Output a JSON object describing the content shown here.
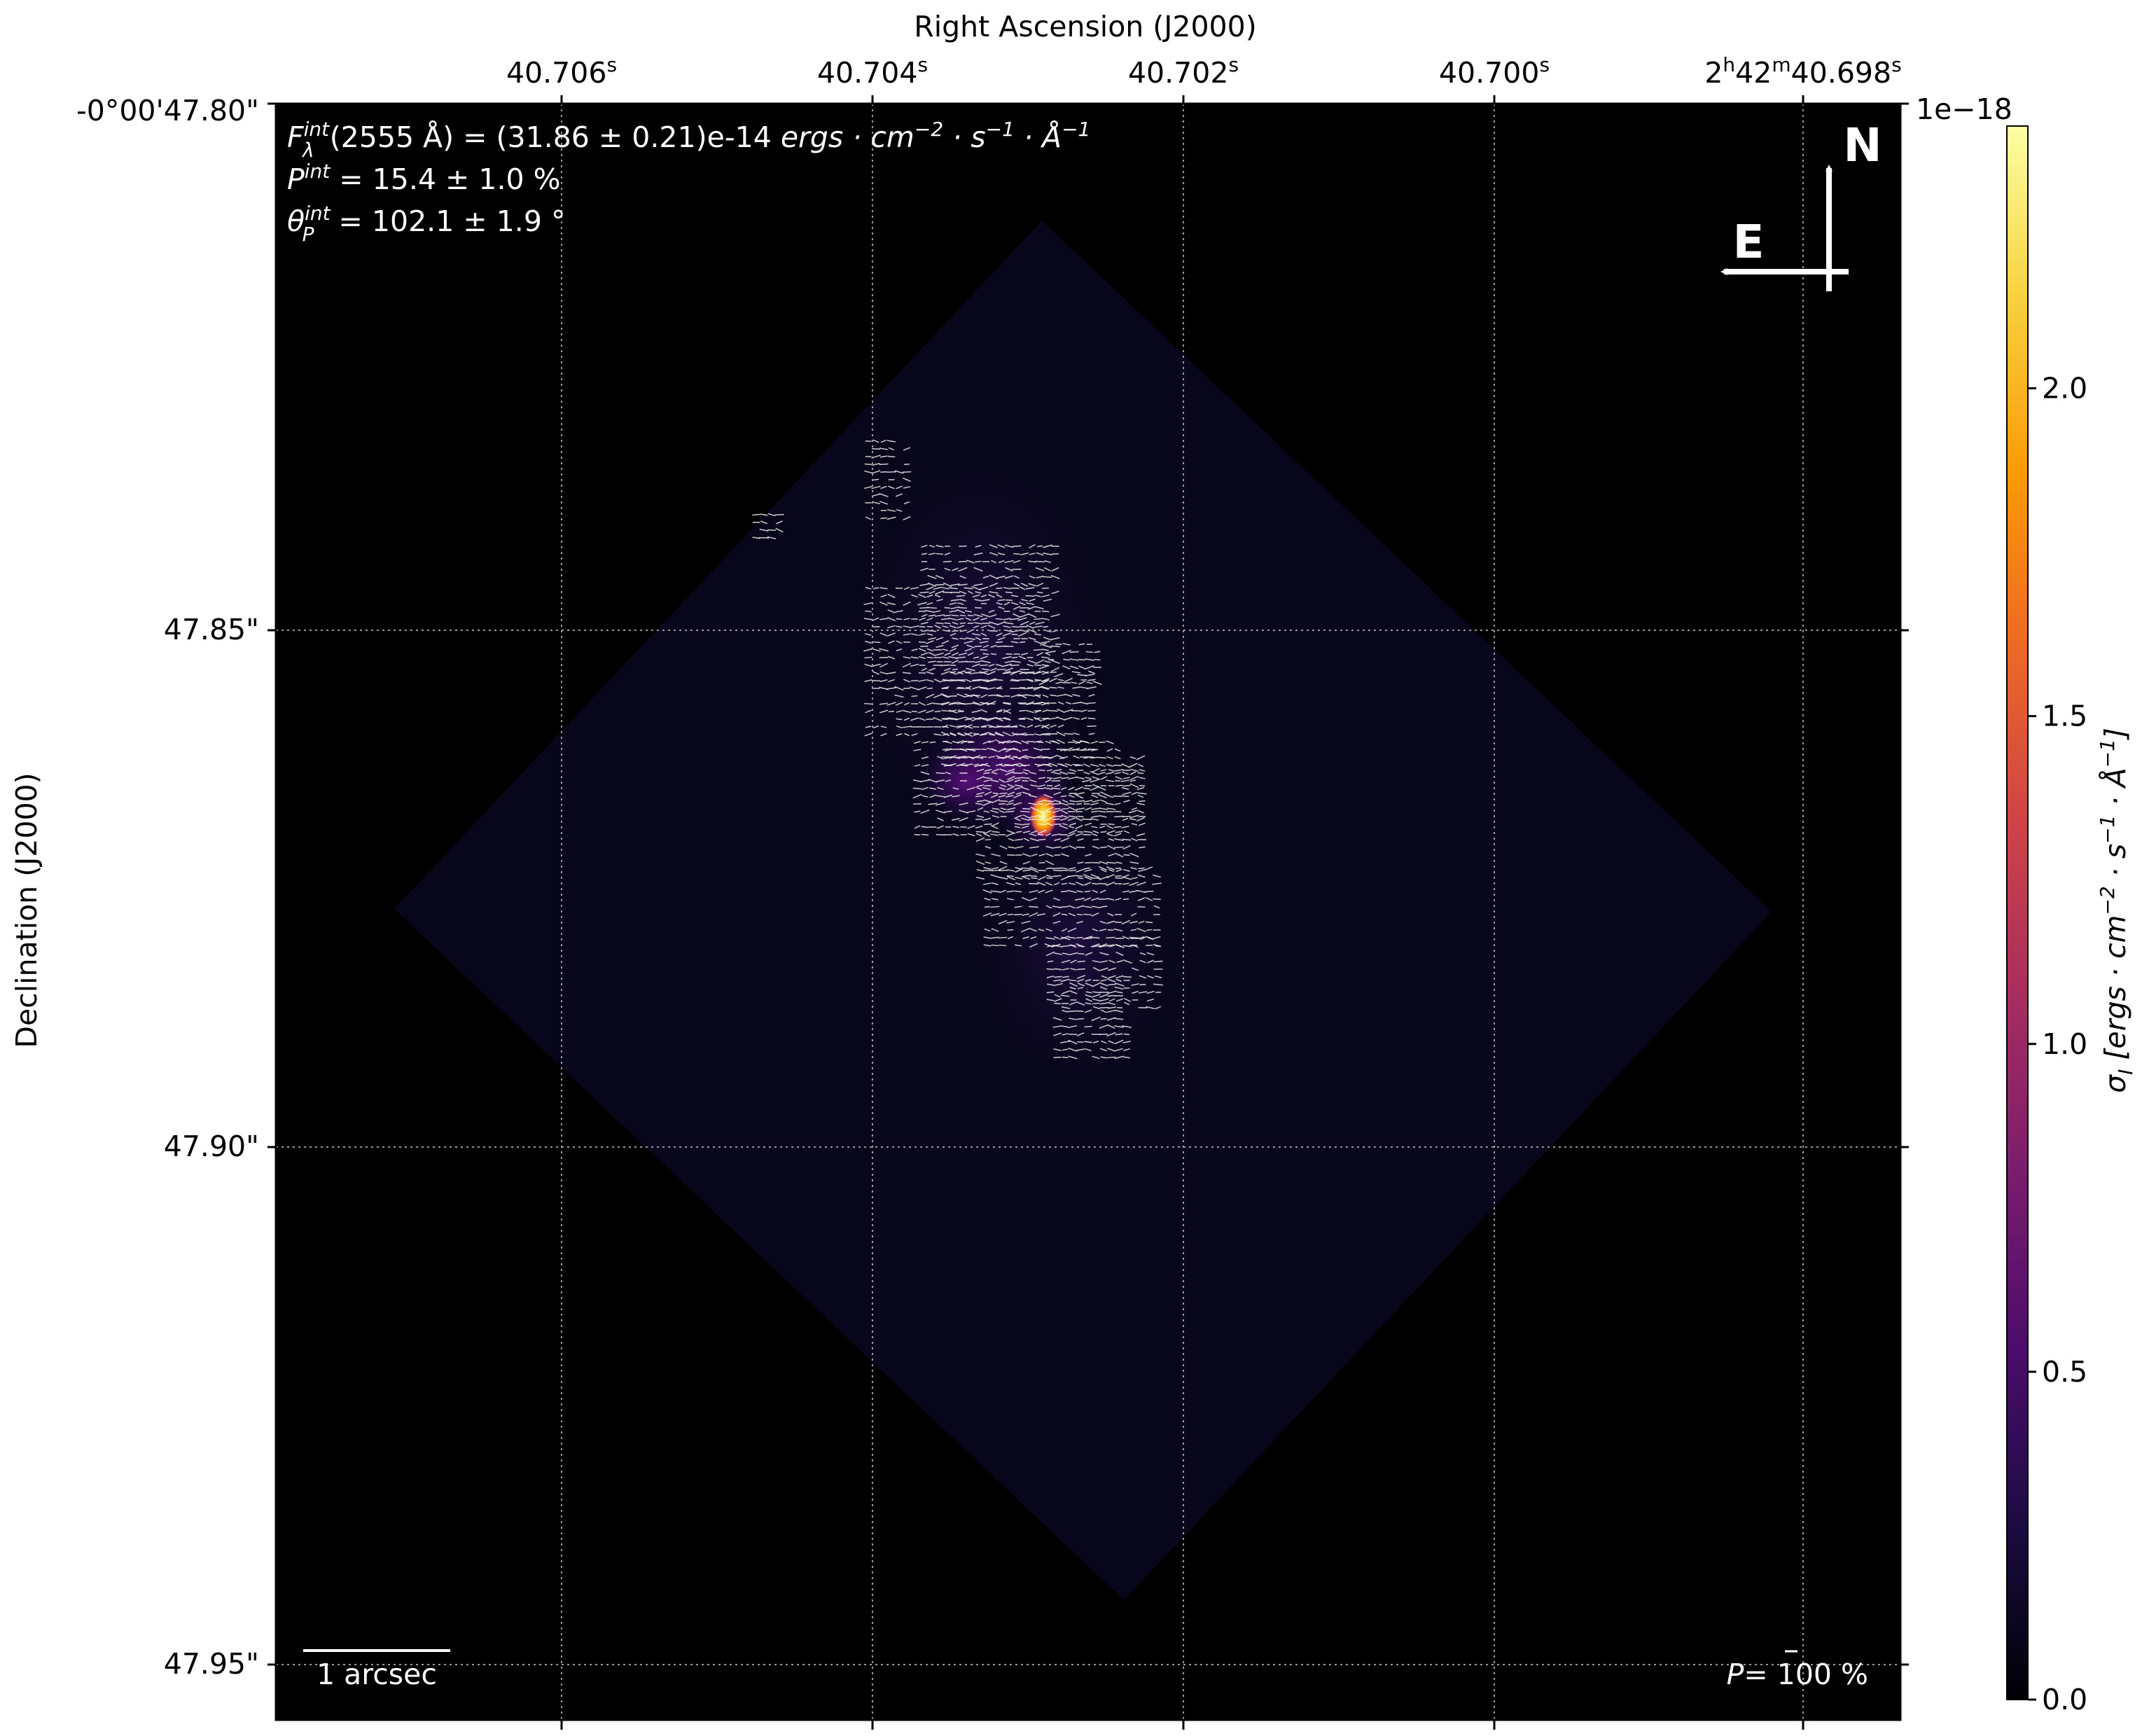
{
  "chart_data": {
    "type": "heatmap",
    "title": "",
    "xlabel": "Right Ascension (J2000)",
    "ylabel": "Declination (J2000)",
    "x_ticks": [
      {
        "label": "40.706",
        "sup": "s"
      },
      {
        "label": "40.704",
        "sup": "s"
      },
      {
        "label": "40.702",
        "sup": "s"
      },
      {
        "label": "40.700",
        "sup": "s"
      },
      {
        "label_parts": [
          "2",
          "h",
          "42",
          "m",
          "40.698",
          "s"
        ]
      }
    ],
    "y_ticks": [
      "-0°00'47.80\"",
      "47.85\"",
      "47.90\"",
      "47.95\""
    ],
    "grid": true,
    "colormap": "inferno",
    "colorbar": {
      "label": "σ_I [ergs·cm⁻²·s⁻¹·Å⁻¹]",
      "label_parts": [
        "σ",
        "I",
        " [ergs · cm",
        "−2",
        " · s",
        "−1",
        " · Å",
        "−1",
        "]"
      ],
      "exponent": "1e−18",
      "range": [
        0.0,
        2.4
      ],
      "ticks": [
        "0.0",
        "0.5",
        "1.0",
        "1.5",
        "2.0"
      ]
    },
    "annotations": {
      "flux": {
        "symbol": "F",
        "sup": "int",
        "sub": "λ",
        "text": "(2555 Å) = (31.86 ± 0.21)e-14 ",
        "units": "ergs · cm",
        "units_parts": [
          "−2",
          " · s",
          "−1",
          " · Å",
          "−1"
        ]
      },
      "polarization_degree": {
        "symbol": "P",
        "sup": "int",
        "text": " = 15.4 ± 1.0 %"
      },
      "polarization_angle": {
        "symbol": "θ",
        "sup": "int",
        "sub": "P",
        "text": " = 102.1 ± 1.9 °"
      },
      "scale_bar": "1 arcsec",
      "vector_scale": {
        "symbol": "P",
        "text": "= 100 %"
      },
      "compass": {
        "north": "N",
        "east": "E"
      }
    },
    "peak_value": 2.4
  },
  "colors": {
    "background": "#000000",
    "footprint": "#07061a",
    "grid": "#9a9a9a",
    "vectors": "#ffffff",
    "inferno": [
      "#000004",
      "#1b0c41",
      "#4a0c6b",
      "#781c6d",
      "#a52c60",
      "#cf4446",
      "#ed6925",
      "#fb9b06",
      "#f7d13d",
      "#fcffa4"
    ]
  }
}
